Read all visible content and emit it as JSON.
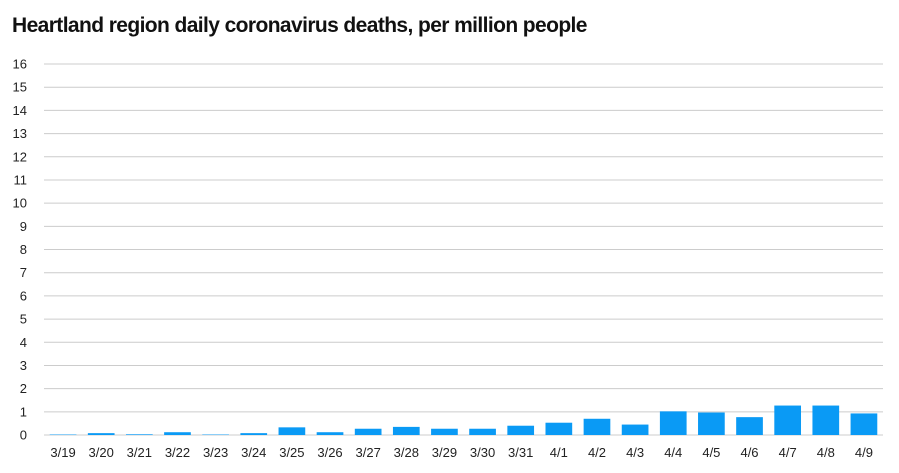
{
  "chart_data": {
    "type": "bar",
    "title": "Heartland region daily coronavirus deaths, per million people",
    "xlabel": "",
    "ylabel": "",
    "categories": [
      "3/19",
      "3/20",
      "3/21",
      "3/22",
      "3/23",
      "3/24",
      "3/25",
      "3/26",
      "3/27",
      "3/28",
      "3/29",
      "3/30",
      "3/31",
      "4/1",
      "4/2",
      "4/3",
      "4/4",
      "4/5",
      "4/6",
      "4/7",
      "4/8",
      "4/9"
    ],
    "values": [
      0.02,
      0.08,
      0.03,
      0.12,
      0.02,
      0.08,
      0.33,
      0.12,
      0.27,
      0.35,
      0.27,
      0.27,
      0.4,
      0.53,
      0.7,
      0.45,
      1.02,
      0.97,
      0.77,
      1.27,
      1.27,
      0.93
    ],
    "ylim": [
      0,
      16
    ],
    "yticks": [
      0,
      1,
      2,
      3,
      4,
      5,
      6,
      7,
      8,
      9,
      10,
      11,
      12,
      13,
      14,
      15,
      16
    ],
    "grid": true,
    "bar_color": "#0a9af5",
    "grid_color": "#cccccc"
  }
}
